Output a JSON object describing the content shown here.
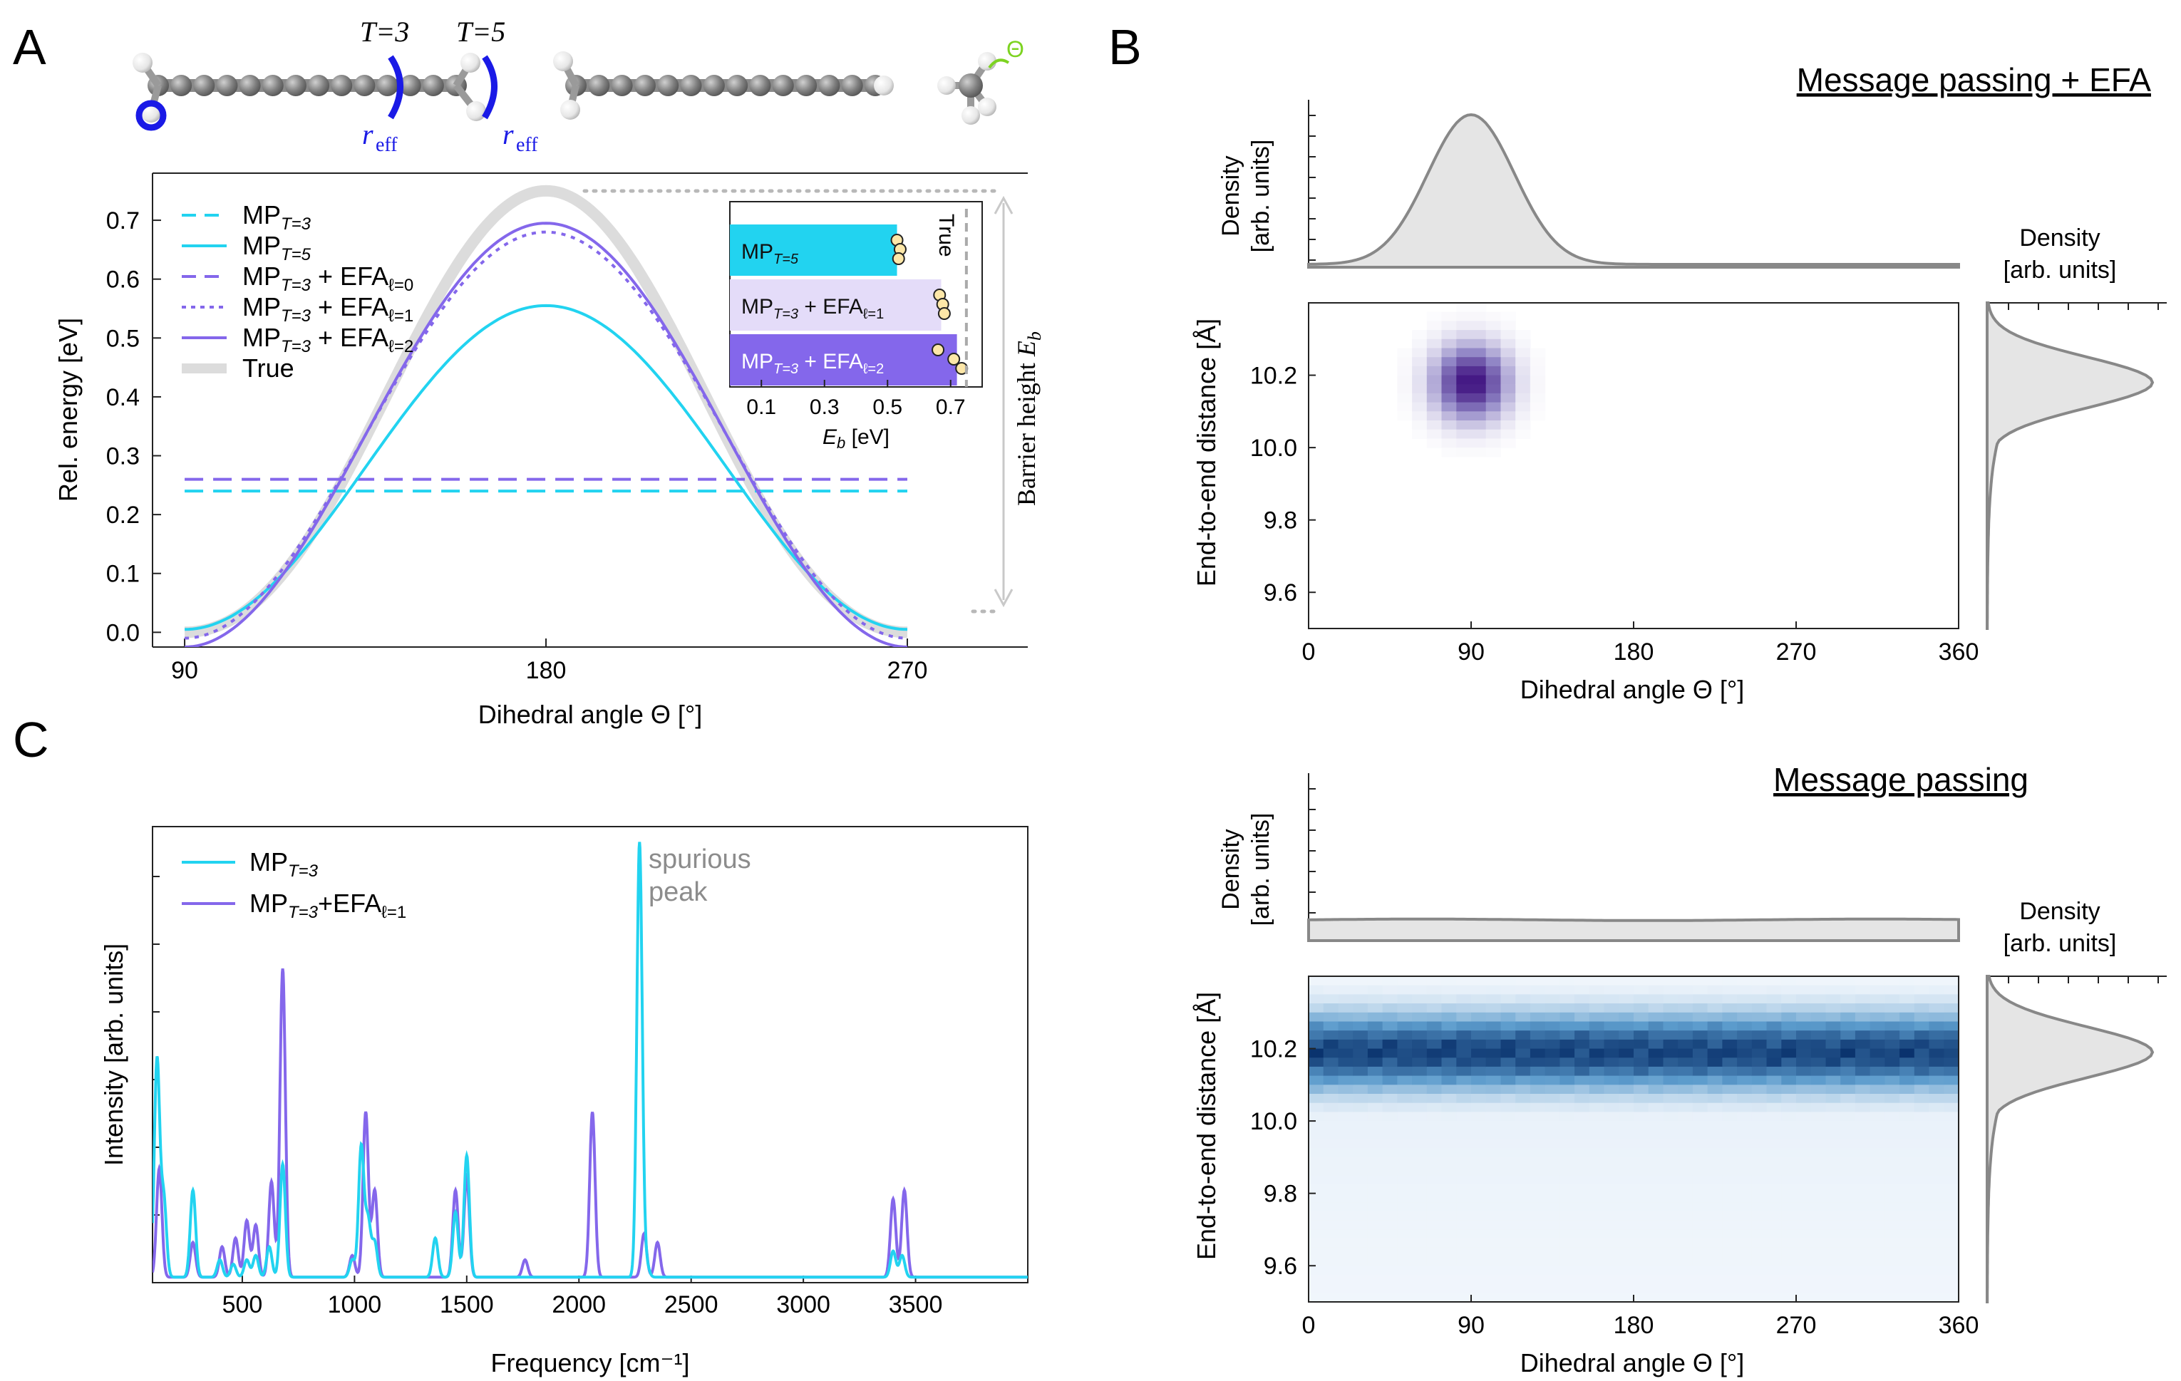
{
  "panels": {
    "A": {
      "letter": "A",
      "molecule": {
        "t3_label": "T=3",
        "t5_label": "T=5",
        "reff_main": "r",
        "reff_sub": "eff",
        "theta_symbol": "Θ"
      },
      "inset": {
        "xlabel_main": "E",
        "xlabel_sub": "b",
        "xlabel_unit": "[eV]",
        "true_label": "True",
        "bars": [
          {
            "label_main": "MP",
            "label_sub": "T=5",
            "label_tail": "",
            "value": 0.53,
            "points": [
              0.53,
              0.54,
              0.535
            ],
            "color": "#22d3f0"
          },
          {
            "label_main": "MP",
            "label_sub": "T=3",
            "label_tail": " + EFA",
            "label_tail_sub": "ℓ=1",
            "value": 0.67,
            "points": [
              0.665,
              0.675,
              0.68
            ],
            "color": "#e4dcf9"
          },
          {
            "label_main": "MP",
            "label_sub": "T=3",
            "label_tail": " + EFA",
            "label_tail_sub": "ℓ=2",
            "value": 0.72,
            "points": [
              0.66,
              0.71,
              0.735
            ],
            "color": "#8467eb"
          }
        ],
        "xticks": [
          "0.1",
          "0.3",
          "0.5",
          "0.7"
        ],
        "xtick_values": [
          0.1,
          0.3,
          0.5,
          0.7
        ],
        "xlim": [
          0,
          0.8
        ],
        "true_value": 0.75
      },
      "barrier_label_main": "Barrier height ",
      "barrier_label_italic": "E",
      "barrier_label_sub": "b"
    },
    "B": {
      "letter": "B",
      "top_title": "Message passing + EFA",
      "bottom_title": "Message passing",
      "density_label_1": "Density",
      "density_label_2": "[arb. units]",
      "ylabel": "End-to-end distance [Å]",
      "xlabel": "Dihedral angle Θ [°]"
    },
    "C": {
      "letter": "C",
      "spurious_1": "spurious",
      "spurious_2": "peak"
    }
  },
  "chart_data": [
    {
      "id": "A-main",
      "type": "line",
      "title": "",
      "xlabel": "Dihedral angle Θ [°]",
      "ylabel": "Rel. energy [eV]",
      "xlim": [
        82,
        300
      ],
      "ylim": [
        -0.025,
        0.78
      ],
      "xticks": [
        90,
        180,
        270
      ],
      "yticks": [
        0.0,
        0.1,
        0.2,
        0.3,
        0.4,
        0.5,
        0.6,
        0.7
      ],
      "legend_position": "top-left",
      "series": [
        {
          "name": "MP_T=3",
          "label_main": "MP",
          "label_sub": "T=3",
          "label_tail": "",
          "label_tail_sub": "",
          "color": "#22d3f0",
          "style": "dashed",
          "kind": "flat",
          "value": 0.24,
          "width": 4
        },
        {
          "name": "MP_T=5",
          "label_main": "MP",
          "label_sub": "T=5",
          "label_tail": "",
          "label_tail_sub": "",
          "color": "#22d3f0",
          "style": "solid",
          "kind": "cos",
          "min": 0.005,
          "max": 0.555,
          "width": 4
        },
        {
          "name": "MP_T=3 + EFA_l=0",
          "label_main": "MP",
          "label_sub": "T=3",
          "label_tail": " + EFA",
          "label_tail_sub": "ℓ=0",
          "color": "#8467eb",
          "style": "dashed",
          "kind": "flat",
          "value": 0.26,
          "width": 4
        },
        {
          "name": "MP_T=3 + EFA_l=1",
          "label_main": "MP",
          "label_sub": "T=3",
          "label_tail": " + EFA",
          "label_tail_sub": "ℓ=1",
          "color": "#8467eb",
          "style": "dotted",
          "kind": "cos",
          "min": -0.01,
          "max": 0.68,
          "width": 4
        },
        {
          "name": "MP_T=3 + EFA_l=2",
          "label_main": "MP",
          "label_sub": "T=3",
          "label_tail": " + EFA",
          "label_tail_sub": "ℓ=2",
          "color": "#8467eb",
          "style": "solid",
          "kind": "cos",
          "min": -0.025,
          "max": 0.695,
          "width": 4
        },
        {
          "name": "True",
          "label_main": "True",
          "label_sub": "",
          "label_tail": "",
          "label_tail_sub": "",
          "color": "#dcdcdc",
          "style": "solid",
          "kind": "cos",
          "min": 0.0,
          "max": 0.75,
          "width": 16
        }
      ]
    },
    {
      "id": "B-top-heatmap",
      "type": "heatmap",
      "title": "Message passing + EFA",
      "xlabel": "Dihedral angle Θ [°]",
      "ylabel": "End-to-end distance [Å]",
      "xlim": [
        0,
        360
      ],
      "ylim": [
        9.5,
        10.4
      ],
      "xticks": [
        0,
        90,
        180,
        270,
        360
      ],
      "yticks": [
        9.6,
        9.8,
        10.0,
        10.2
      ],
      "center": {
        "x": 90,
        "y": 10.18
      },
      "spread": {
        "x": 14,
        "y": 0.07
      },
      "colormap": "purples",
      "marginal_x": {
        "type": "gaussian",
        "mean": 90,
        "sd": 24
      },
      "marginal_y": {
        "type": "gaussian",
        "mean": 10.18,
        "sd": 0.07
      }
    },
    {
      "id": "B-bottom-heatmap",
      "type": "heatmap",
      "title": "Message passing",
      "xlabel": "Dihedral angle Θ [°]",
      "ylabel": "End-to-end distance [Å]",
      "xlim": [
        0,
        360
      ],
      "ylim": [
        9.5,
        10.4
      ],
      "xticks": [
        0,
        90,
        180,
        270,
        360
      ],
      "yticks": [
        9.6,
        9.8,
        10.0,
        10.2
      ],
      "center": {
        "x": null,
        "y": 10.19
      },
      "spread": {
        "x": null,
        "y": 0.07
      },
      "colormap": "blues",
      "marginal_x": {
        "type": "uniform",
        "level": 0.12
      },
      "marginal_y": {
        "type": "gaussian",
        "mean": 10.19,
        "sd": 0.07
      }
    },
    {
      "id": "C-spectrum",
      "type": "line",
      "title": "",
      "xlabel": "Frequency [cm⁻¹]",
      "ylabel": "Intensity [arb. units]",
      "xlim": [
        100,
        4000
      ],
      "ylim": [
        0,
        1.0
      ],
      "xticks": [
        500,
        1000,
        1500,
        2000,
        2500,
        3000,
        3500
      ],
      "legend_position": "top-left",
      "series": [
        {
          "name": "MP_T=3",
          "label_main": "MP",
          "label_sub": "T=3",
          "label_tail": "",
          "label_tail_sub": "",
          "color": "#22d3f0",
          "peaks": [
            [
              120,
              0.5
            ],
            [
              150,
              0.18
            ],
            [
              280,
              0.2
            ],
            [
              400,
              0.04
            ],
            [
              460,
              0.03
            ],
            [
              520,
              0.04
            ],
            [
              560,
              0.05
            ],
            [
              620,
              0.07
            ],
            [
              680,
              0.26
            ],
            [
              990,
              0.04
            ],
            [
              1030,
              0.3
            ],
            [
              1060,
              0.13
            ],
            [
              1090,
              0.08
            ],
            [
              1360,
              0.09
            ],
            [
              1450,
              0.15
            ],
            [
              1500,
              0.28
            ],
            [
              2270,
              1.0
            ],
            [
              2300,
              0.03
            ],
            [
              3400,
              0.06
            ],
            [
              3440,
              0.05
            ]
          ]
        },
        {
          "name": "MP_T=3+EFA_l=1",
          "label_main": "MP",
          "label_sub": "T=3",
          "label_tail": "+EFA",
          "label_tail_sub": "ℓ=1",
          "color": "#8467eb",
          "peaks": [
            [
              130,
              0.25
            ],
            [
              280,
              0.08
            ],
            [
              410,
              0.07
            ],
            [
              470,
              0.09
            ],
            [
              520,
              0.13
            ],
            [
              560,
              0.12
            ],
            [
              630,
              0.22
            ],
            [
              680,
              0.71
            ],
            [
              990,
              0.05
            ],
            [
              1050,
              0.38
            ],
            [
              1090,
              0.2
            ],
            [
              1450,
              0.2
            ],
            [
              1500,
              0.23
            ],
            [
              1760,
              0.04
            ],
            [
              2060,
              0.38
            ],
            [
              2290,
              0.1
            ],
            [
              2350,
              0.08
            ],
            [
              3400,
              0.18
            ],
            [
              3450,
              0.2
            ]
          ]
        }
      ]
    }
  ]
}
